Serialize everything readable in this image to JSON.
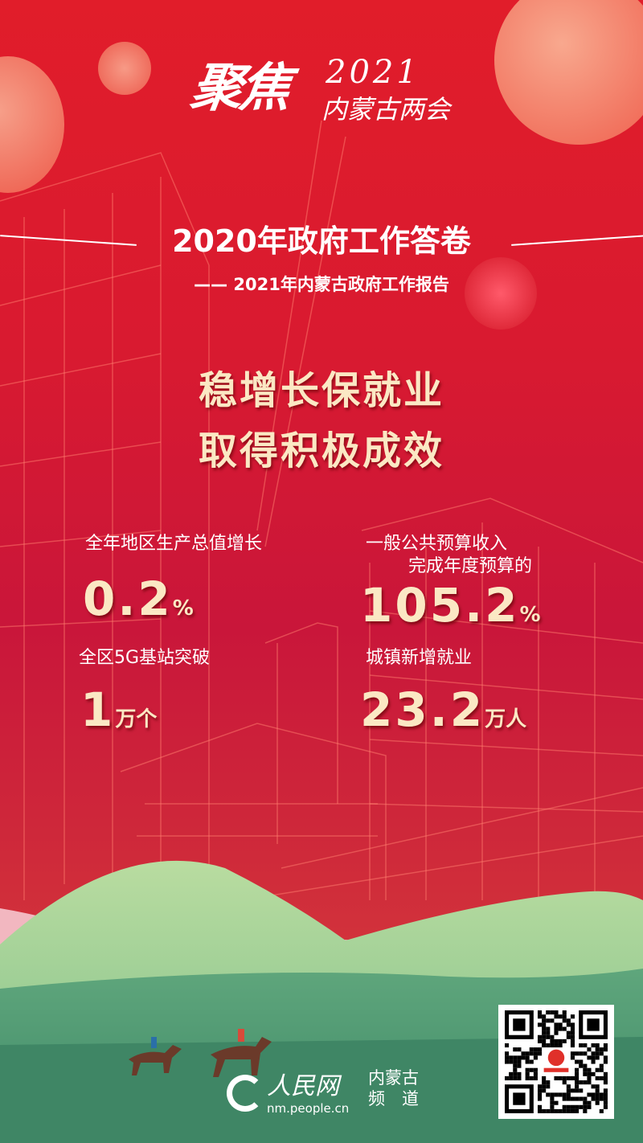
{
  "logo": {
    "main": "聚焦",
    "year": "2021",
    "sub": "内蒙古两会"
  },
  "header": {
    "title": "2020年政府工作答卷",
    "subtitle": "—— 2021年内蒙古政府工作报告"
  },
  "headline": [
    "稳增长保就业",
    "取得积极成效"
  ],
  "stats": [
    {
      "label": "全年地区生产总值增长",
      "value": "0.2",
      "unit": "%"
    },
    {
      "label": "一般公共预算收入",
      "label2": "完成年度预算的",
      "value": "105.2",
      "unit": "%"
    },
    {
      "label": "全区5G基站突破",
      "value": "1",
      "unit": "万个"
    },
    {
      "label": "城镇新增就业",
      "value": "23.2",
      "unit": "万人"
    }
  ],
  "footer": {
    "brand": "人民网",
    "channel_line1": "内蒙古",
    "channel_line2": "频　道",
    "url": "nm.people.cn"
  },
  "colors": {
    "background": "#d91a30",
    "accent_text": "#fbe8c4",
    "hills": "#4e9b72"
  }
}
